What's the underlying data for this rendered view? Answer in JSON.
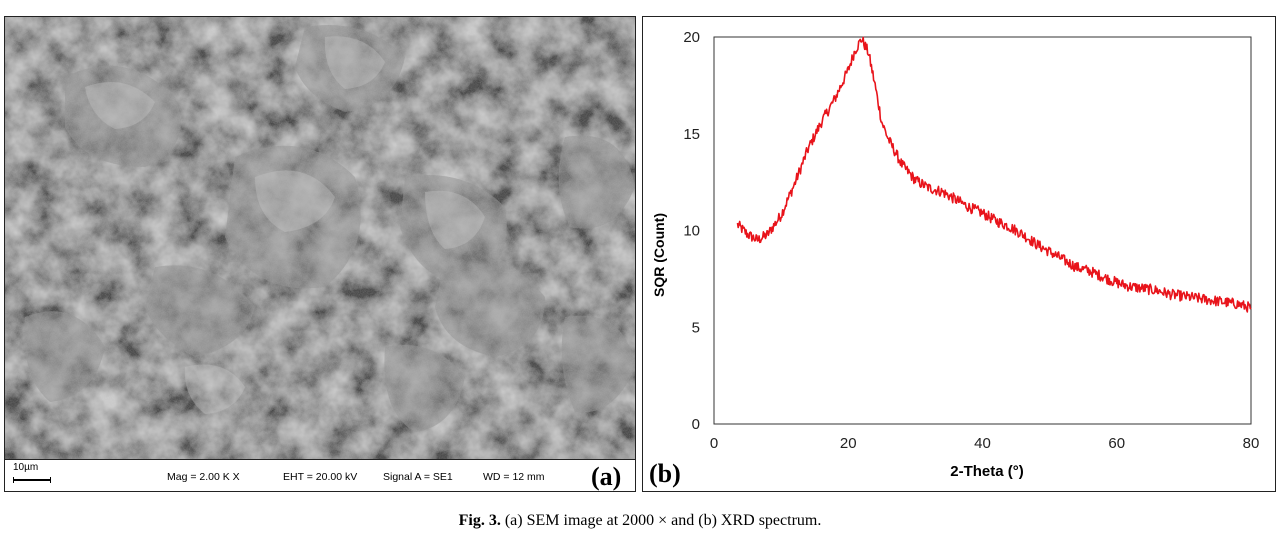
{
  "panel_a": {
    "label": "(a)",
    "databar": {
      "scale_label": "10µm",
      "mag": "Mag =  2.00 K X",
      "eht": "EHT = 20.00 kV",
      "signal": "Signal A = SE1",
      "wd": "WD =  12 mm"
    }
  },
  "panel_b": {
    "label": "(b)"
  },
  "caption": {
    "figure_number": "Fig. 3.",
    "text": "(a) SEM image at 2000 × and (b) XRD spectrum."
  },
  "chart_data": {
    "type": "line",
    "title": "",
    "xlabel": "2-Theta (°)",
    "ylabel": "SQR (Count)",
    "xlim": [
      0,
      80
    ],
    "ylim": [
      0,
      20
    ],
    "x_ticks": [
      0,
      20,
      40,
      60,
      80
    ],
    "y_ticks": [
      0,
      5,
      10,
      15,
      20
    ],
    "grid": false,
    "legend": "none",
    "series": [
      {
        "color": "#e8141b",
        "x": [
          3.5,
          5,
          6.5,
          8,
          10,
          12,
          14,
          16,
          18,
          20,
          21,
          22,
          23,
          24,
          25,
          26,
          28,
          30,
          32,
          34,
          36,
          38,
          40,
          42,
          44,
          46,
          48,
          50,
          52,
          54,
          56,
          58,
          60,
          62,
          64,
          66,
          68,
          70,
          72,
          74,
          76,
          78,
          80
        ],
        "y": [
          10.3,
          9.8,
          9.5,
          9.8,
          10.8,
          12.4,
          14.2,
          15.6,
          16.8,
          18.3,
          19.3,
          19.9,
          19.2,
          17.5,
          15.6,
          14.7,
          13.4,
          12.6,
          12.2,
          12.0,
          11.6,
          11.2,
          10.9,
          10.5,
          10.2,
          9.8,
          9.3,
          8.9,
          8.5,
          8.1,
          7.9,
          7.6,
          7.3,
          7.1,
          7.0,
          6.9,
          6.7,
          6.6,
          6.5,
          6.4,
          6.3,
          6.2,
          6.0
        ]
      }
    ]
  }
}
